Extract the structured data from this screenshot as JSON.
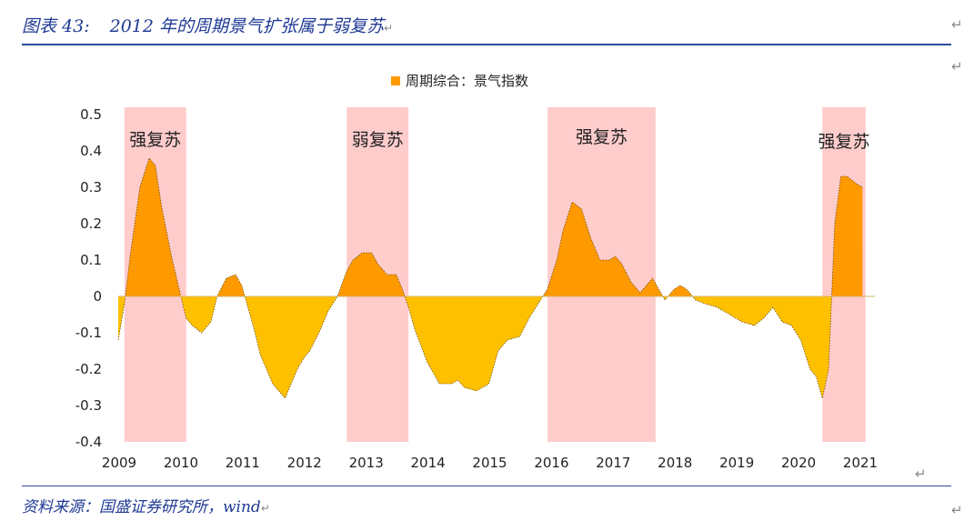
{
  "figure": {
    "number": "图表 43:",
    "title": "2012 年的周期景气扩张属于弱复苏",
    "source": "资料来源：国盛证券研究所，wind"
  },
  "marks": {
    "return_symbol": "↵"
  },
  "colors": {
    "positive_fill": "#ff9900",
    "negative_fill": "#ffc000",
    "outline": "#6b4a00",
    "shade": "#ffcccc",
    "title_blue": "#1f3a93"
  },
  "chart_data": {
    "type": "area",
    "title": "",
    "legend": "周期综合：景气指数",
    "legend_position": "top-center",
    "xlabel": "",
    "ylabel": "",
    "xlim": [
      2009.0,
      2021.25
    ],
    "ylim": [
      -0.4,
      0.5
    ],
    "y_ticks": [
      0.5,
      0.4,
      0.3,
      0.2,
      0.1,
      0,
      -0.1,
      -0.2,
      -0.3,
      -0.4
    ],
    "y_tick_labels": [
      "0.5",
      "0.4",
      "0.3",
      "0.2",
      "0.1",
      "0",
      "-0.1",
      "-0.2",
      "-0.3",
      "-0.4"
    ],
    "x_ticks": [
      2009,
      2010,
      2011,
      2012,
      2013,
      2014,
      2015,
      2016,
      2017,
      2018,
      2019,
      2020,
      2021
    ],
    "x_tick_labels": [
      "2009",
      "2010",
      "2011",
      "2012",
      "2013",
      "2014",
      "2015",
      "2016",
      "2017",
      "2018",
      "2019",
      "2020",
      "2021"
    ],
    "periods": [
      {
        "start": 2009.1,
        "end": 2010.1,
        "label": "强复苏"
      },
      {
        "start": 2012.7,
        "end": 2013.7,
        "label": "弱复苏"
      },
      {
        "start": 2015.95,
        "end": 2017.7,
        "label": "强复苏"
      },
      {
        "start": 2020.4,
        "end": 2021.1,
        "label": "强复苏"
      }
    ],
    "series": [
      {
        "name": "周期综合：景气指数",
        "x": [
          2009.0,
          2009.1,
          2009.2,
          2009.35,
          2009.5,
          2009.6,
          2009.7,
          2009.85,
          2010.0,
          2010.1,
          2010.2,
          2010.35,
          2010.5,
          2010.6,
          2010.75,
          2010.9,
          2011.0,
          2011.1,
          2011.2,
          2011.3,
          2011.5,
          2011.7,
          2011.9,
          2012.0,
          2012.1,
          2012.25,
          2012.4,
          2012.55,
          2012.7,
          2012.8,
          2012.95,
          2013.1,
          2013.2,
          2013.35,
          2013.5,
          2013.6,
          2013.7,
          2013.8,
          2014.0,
          2014.2,
          2014.4,
          2014.5,
          2014.6,
          2014.8,
          2015.0,
          2015.15,
          2015.3,
          2015.5,
          2015.65,
          2015.8,
          2015.95,
          2016.1,
          2016.2,
          2016.35,
          2016.5,
          2016.65,
          2016.8,
          2016.95,
          2017.05,
          2017.15,
          2017.3,
          2017.45,
          2017.55,
          2017.65,
          2017.75,
          2017.85,
          2018.0,
          2018.1,
          2018.2,
          2018.35,
          2018.5,
          2018.7,
          2018.9,
          2019.1,
          2019.3,
          2019.45,
          2019.6,
          2019.75,
          2019.9,
          2020.05,
          2020.2,
          2020.3,
          2020.4,
          2020.5,
          2020.6,
          2020.7,
          2020.8,
          2020.95,
          2021.05
        ],
        "values": [
          -0.12,
          -0.02,
          0.12,
          0.3,
          0.38,
          0.36,
          0.25,
          0.12,
          0.01,
          -0.06,
          -0.08,
          -0.1,
          -0.07,
          0.0,
          0.05,
          0.06,
          0.03,
          -0.03,
          -0.09,
          -0.16,
          -0.24,
          -0.28,
          -0.2,
          -0.17,
          -0.15,
          -0.1,
          -0.04,
          0.0,
          0.07,
          0.1,
          0.12,
          0.12,
          0.09,
          0.06,
          0.06,
          0.02,
          -0.03,
          -0.09,
          -0.18,
          -0.24,
          -0.24,
          -0.23,
          -0.25,
          -0.26,
          -0.24,
          -0.15,
          -0.12,
          -0.11,
          -0.06,
          -0.02,
          0.02,
          0.1,
          0.18,
          0.26,
          0.24,
          0.16,
          0.1,
          0.1,
          0.11,
          0.09,
          0.04,
          0.01,
          0.03,
          0.05,
          0.02,
          -0.01,
          0.02,
          0.03,
          0.02,
          -0.01,
          -0.02,
          -0.03,
          -0.05,
          -0.07,
          -0.08,
          -0.06,
          -0.03,
          -0.07,
          -0.08,
          -0.12,
          -0.2,
          -0.22,
          -0.28,
          -0.2,
          0.2,
          0.33,
          0.33,
          0.31,
          0.3
        ]
      }
    ]
  }
}
